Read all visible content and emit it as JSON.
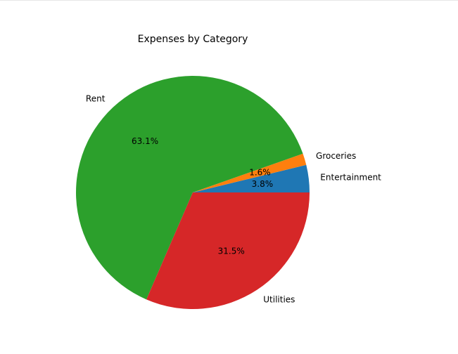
{
  "chart_data": {
    "type": "pie",
    "title": "Expenses by Category",
    "start_angle_deg": 0,
    "direction": "counterclockwise",
    "slices": [
      {
        "label": "Entertainment",
        "pct": 3.8,
        "pct_label": "3.8%",
        "color": "#1f77b4"
      },
      {
        "label": "Groceries",
        "pct": 1.6,
        "pct_label": "1.6%",
        "color": "#ff7f0e"
      },
      {
        "label": "Rent",
        "pct": 63.1,
        "pct_label": "63.1%",
        "color": "#2ca02c"
      },
      {
        "label": "Utilities",
        "pct": 31.5,
        "pct_label": "31.5%",
        "color": "#d62728"
      }
    ]
  }
}
